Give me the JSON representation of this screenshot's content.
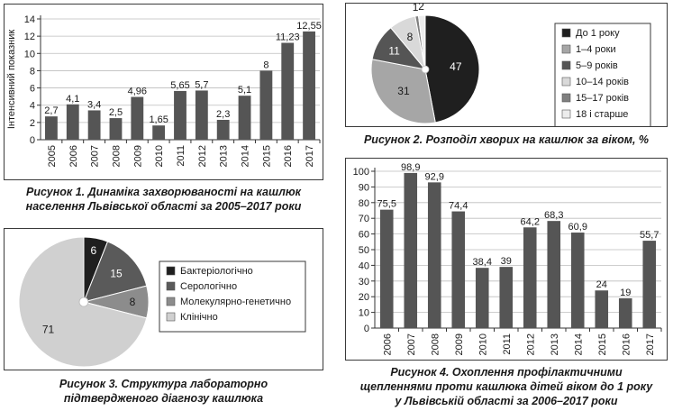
{
  "figures": {
    "fig1": {
      "caption_line1": "Рисунок 1.  Динаміка захворюваності на кашлюк",
      "caption_line2": "населення Львівської області за 2005–2017 роки"
    },
    "fig2": {
      "caption": "Рисунок 2.  Розподіл хворих на кашлюк за віком, %"
    },
    "fig3": {
      "caption_line1": "Рисунок 3.  Структура лабораторно",
      "caption_line2": "підтвердженого діагнозу кашлюка"
    },
    "fig4": {
      "caption_line1": "Рисунок 4.  Охоплення профілактичними",
      "caption_line2": "щепленнями проти кашлюка дітей віком до 1 року",
      "caption_line3": "у Львівській області за 2006–2017 роки"
    }
  },
  "chart_data": [
    {
      "id": "fig1",
      "type": "bar",
      "ylabel": "Інтенсивний показник",
      "xlabel": "",
      "ylim": [
        0,
        14
      ],
      "yticks": [
        0,
        2,
        4,
        6,
        8,
        10,
        12,
        14
      ],
      "grid": true,
      "categories": [
        "2005",
        "2006",
        "2007",
        "2008",
        "2009",
        "2010",
        "2011",
        "2012",
        "2013",
        "2014",
        "2015",
        "2016",
        "2017"
      ],
      "values": [
        2.7,
        4.1,
        3.4,
        2.5,
        4.96,
        1.65,
        5.65,
        5.7,
        2.3,
        5.1,
        8,
        11.23,
        12.55
      ],
      "data_labels": [
        "2,7",
        "4,1",
        "3,4",
        "2,5",
        "4,96",
        "1,65",
        "5,65",
        "5,7",
        "2,3",
        "5,1",
        "8",
        "11,23",
        "12,55"
      ],
      "bar_color": "#555555"
    },
    {
      "id": "fig2",
      "type": "pie",
      "labels": [
        "До 1 року",
        "1–4 роки",
        "5–9 років",
        "10–14 років",
        "15–17 років",
        "18 і старше"
      ],
      "values": [
        47,
        31,
        11,
        8,
        1,
        2
      ],
      "data_labels": [
        "47",
        "31",
        "11",
        "8",
        "1",
        "2"
      ],
      "colors": [
        "#1f1f1f",
        "#a6a6a6",
        "#555555",
        "#d9d9d9",
        "#7f7f7f",
        "#ececec"
      ],
      "legend": "right"
    },
    {
      "id": "fig3",
      "type": "pie",
      "labels": [
        "Бактеріологічно",
        "Серологічно",
        "Молекулярно-генетично",
        "Клінічно"
      ],
      "values": [
        6,
        15,
        8,
        71
      ],
      "data_labels": [
        "6",
        "15",
        "8",
        "71"
      ],
      "colors": [
        "#1f1f1f",
        "#5a5a5a",
        "#8c8c8c",
        "#d0d0d0"
      ],
      "legend": "right"
    },
    {
      "id": "fig4",
      "type": "bar",
      "ylim": [
        0,
        100
      ],
      "yticks": [
        0,
        10,
        20,
        30,
        40,
        50,
        60,
        70,
        80,
        90,
        100
      ],
      "grid": true,
      "categories": [
        "2006",
        "2007",
        "2008",
        "2009",
        "2010",
        "2011",
        "2012",
        "2013",
        "2014",
        "2015",
        "2016",
        "2017"
      ],
      "values": [
        75.5,
        98.9,
        92.9,
        74.4,
        38.4,
        39,
        64.2,
        68.3,
        60.9,
        24,
        19,
        55.7
      ],
      "data_labels": [
        "75,5",
        "98,9",
        "92,9",
        "74,4",
        "38,4",
        "39",
        "64,2",
        "68,3",
        "60,9",
        "24",
        "19",
        "55,7"
      ],
      "bar_color": "#555555"
    }
  ]
}
